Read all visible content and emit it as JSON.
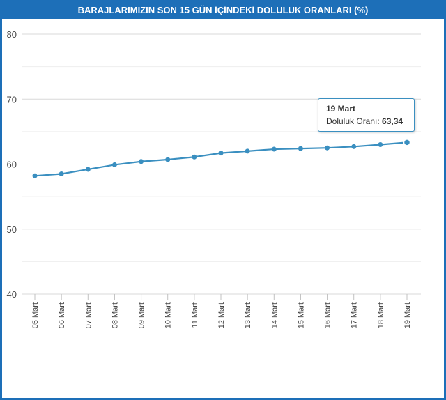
{
  "title": "BARAJLARIMIZIN SON 15 GÜN İÇİNDEKİ DOLULUK ORANLARI (%)",
  "chart_data": {
    "type": "line",
    "title": "BARAJLARIMIZIN SON 15 GÜN İÇİNDEKİ DOLULUK ORANLARI (%)",
    "categories": [
      "05 Mart",
      "06 Mart",
      "07 Mart",
      "08 Mart",
      "09 Mart",
      "10 Mart",
      "11 Mart",
      "12 Mart",
      "13 Mart",
      "14 Mart",
      "15 Mart",
      "16 Mart",
      "17 Mart",
      "18 Mart",
      "19 Mart"
    ],
    "values": [
      58.2,
      58.5,
      59.2,
      59.9,
      60.4,
      60.7,
      61.1,
      61.7,
      62.0,
      62.3,
      62.4,
      62.5,
      62.7,
      63.0,
      63.34
    ],
    "ylim": [
      40,
      80
    ],
    "yticks": [
      "40",
      "50",
      "60",
      "70",
      "80"
    ],
    "grid": true,
    "line_color": "#3a8fc0",
    "tooltip": {
      "date": "19 Mart",
      "label": "Doluluk Oranı:",
      "value": "63,34"
    }
  }
}
